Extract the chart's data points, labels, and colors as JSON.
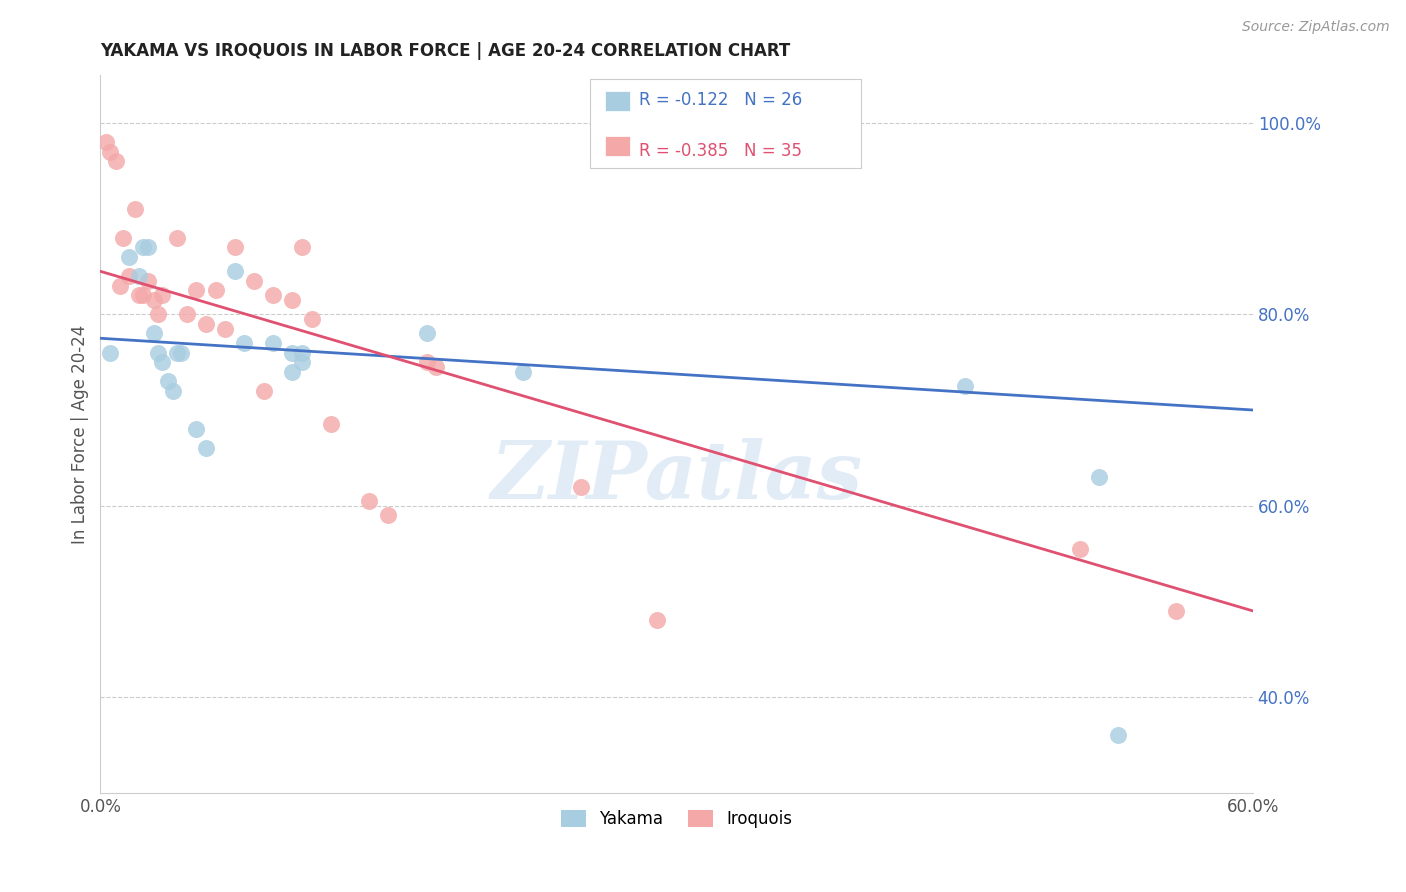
{
  "title": "YAKAMA VS IROQUOIS IN LABOR FORCE | AGE 20-24 CORRELATION CHART",
  "source": "Source: ZipAtlas.com",
  "ylabel": "In Labor Force | Age 20-24",
  "xlim": [
    0.0,
    0.6
  ],
  "ylim": [
    0.3,
    1.05
  ],
  "xticks": [
    0.0,
    0.1,
    0.2,
    0.3,
    0.4,
    0.5,
    0.6
  ],
  "xticklabels": [
    "0.0%",
    "",
    "",
    "",
    "",
    "",
    "60.0%"
  ],
  "yticks_right": [
    0.4,
    0.6,
    0.8,
    1.0
  ],
  "ytick_right_labels": [
    "40.0%",
    "60.0%",
    "80.0%",
    "100.0%"
  ],
  "yakama_R": -0.122,
  "yakama_N": 26,
  "iroquois_R": -0.385,
  "iroquois_N": 35,
  "yakama_color": "#a8cce0",
  "iroquois_color": "#f4a8a8",
  "yakama_line_color": "#4472c4",
  "iroquois_line_color": "#e05070",
  "legend_label_yakama": "Yakama",
  "legend_label_iroquois": "Iroquois",
  "watermark": "ZIPatlas",
  "background_color": "#ffffff",
  "grid_color": "#cccccc",
  "title_color": "#222222",
  "axis_label_color": "#555555",
  "right_axis_color": "#4472c4",
  "yakama_x": [
    0.005,
    0.015,
    0.02,
    0.022,
    0.025,
    0.028,
    0.03,
    0.032,
    0.035,
    0.038,
    0.04,
    0.042,
    0.05,
    0.055,
    0.07,
    0.075,
    0.09,
    0.1,
    0.105,
    0.17,
    0.22,
    0.1,
    0.105,
    0.45,
    0.52,
    0.53
  ],
  "yakama_y": [
    0.76,
    0.86,
    0.84,
    0.87,
    0.87,
    0.78,
    0.76,
    0.75,
    0.73,
    0.72,
    0.76,
    0.76,
    0.68,
    0.66,
    0.845,
    0.77,
    0.77,
    0.74,
    0.76,
    0.78,
    0.74,
    0.76,
    0.75,
    0.725,
    0.63,
    0.36
  ],
  "iroquois_x": [
    0.003,
    0.005,
    0.008,
    0.01,
    0.012,
    0.015,
    0.018,
    0.02,
    0.022,
    0.025,
    0.028,
    0.03,
    0.032,
    0.04,
    0.045,
    0.05,
    0.055,
    0.06,
    0.065,
    0.07,
    0.08,
    0.085,
    0.09,
    0.1,
    0.105,
    0.11,
    0.12,
    0.14,
    0.15,
    0.17,
    0.175,
    0.25,
    0.29,
    0.51,
    0.56
  ],
  "iroquois_y": [
    0.98,
    0.97,
    0.96,
    0.83,
    0.88,
    0.84,
    0.91,
    0.82,
    0.82,
    0.835,
    0.815,
    0.8,
    0.82,
    0.88,
    0.8,
    0.825,
    0.79,
    0.825,
    0.785,
    0.87,
    0.835,
    0.72,
    0.82,
    0.815,
    0.87,
    0.795,
    0.685,
    0.605,
    0.59,
    0.75,
    0.745,
    0.62,
    0.48,
    0.555,
    0.49
  ],
  "trendline_yakama_x0": 0.0,
  "trendline_yakama_x1": 0.6,
  "trendline_yakama_y0": 0.775,
  "trendline_yakama_y1": 0.7,
  "trendline_iroquois_x0": 0.0,
  "trendline_iroquois_x1": 0.6,
  "trendline_iroquois_y0": 0.845,
  "trendline_iroquois_y1": 0.49
}
